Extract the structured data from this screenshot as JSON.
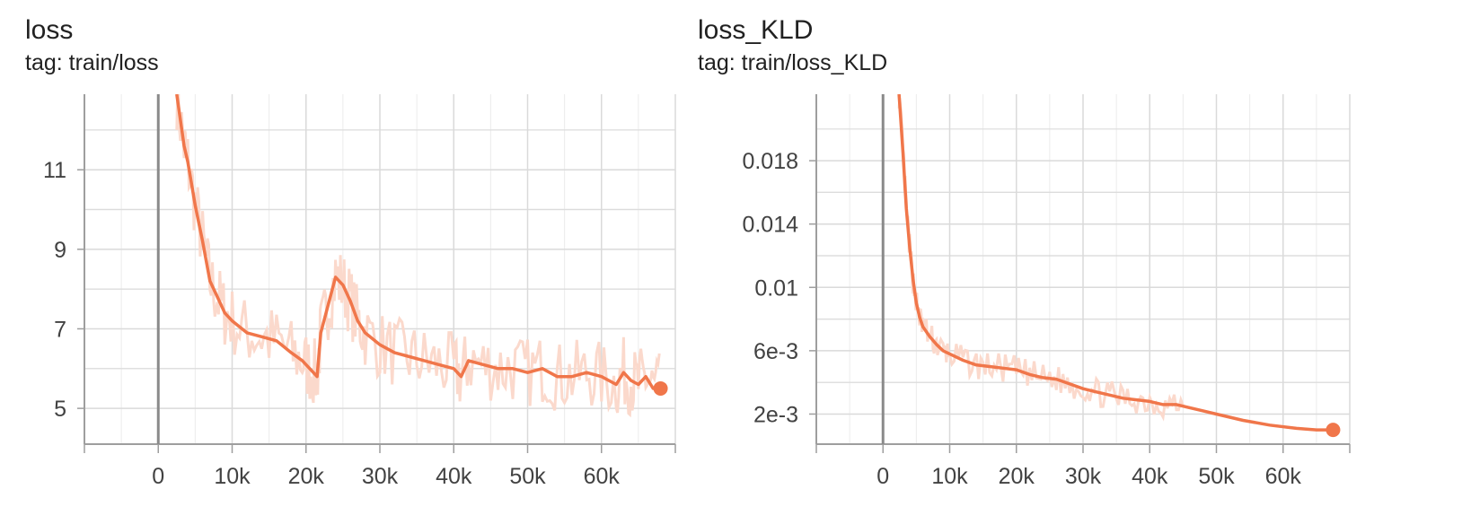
{
  "colors": {
    "line": "#f0764a",
    "raw": "#fbd9cc",
    "grid": "#dadada",
    "axis": "#9e9e9e",
    "zero": "#8a8a8a"
  },
  "chart_data": [
    {
      "type": "line",
      "title": "loss",
      "subtitle": "tag: train/loss",
      "xlabel": "",
      "ylabel": "",
      "xlim": [
        -10000,
        70000
      ],
      "ylim": [
        4.1,
        12.9
      ],
      "x_ticks": [
        0,
        10000,
        20000,
        30000,
        40000,
        50000,
        60000
      ],
      "x_tick_labels": [
        "0",
        "10k",
        "20k",
        "30k",
        "40k",
        "50k",
        "60k"
      ],
      "y_ticks": [
        5,
        7,
        9,
        11
      ],
      "y_tick_labels": [
        "5",
        "7",
        "9",
        "11"
      ],
      "grid": true,
      "series": [
        {
          "x": [
            2500,
            3500,
            4000,
            5000,
            6000,
            7000,
            8000,
            9000,
            10000,
            12000,
            14000,
            16000,
            18000,
            19500,
            20500,
            21500,
            22000,
            23000,
            24000,
            25000,
            26000,
            27000,
            28000,
            30000,
            32000,
            34000,
            36000,
            38000,
            40000,
            41000,
            42000,
            44000,
            46000,
            48000,
            50000,
            52000,
            54000,
            56000,
            58000,
            60000,
            62000,
            63000,
            64000,
            65000,
            66000,
            67000,
            68000
          ],
          "y": [
            12.9,
            11.6,
            11.2,
            10.1,
            9.2,
            8.2,
            7.8,
            7.4,
            7.2,
            6.9,
            6.8,
            6.7,
            6.4,
            6.2,
            6.0,
            5.8,
            6.9,
            7.6,
            8.3,
            8.1,
            7.7,
            7.2,
            6.9,
            6.6,
            6.4,
            6.3,
            6.2,
            6.1,
            6.0,
            5.8,
            6.2,
            6.1,
            6.0,
            6.0,
            5.9,
            6.0,
            5.8,
            5.8,
            5.9,
            5.8,
            5.6,
            5.9,
            5.7,
            5.6,
            5.8,
            5.5,
            5.5
          ]
        }
      ]
    },
    {
      "type": "line",
      "title": "loss_KLD",
      "subtitle": "tag: train/loss_KLD",
      "xlabel": "",
      "ylabel": "",
      "xlim": [
        -10000,
        70000
      ],
      "ylim": [
        0.0001,
        0.0222
      ],
      "x_ticks": [
        0,
        10000,
        20000,
        30000,
        40000,
        50000,
        60000
      ],
      "x_tick_labels": [
        "0",
        "10k",
        "20k",
        "30k",
        "40k",
        "50k",
        "60k"
      ],
      "y_ticks": [
        0.002,
        0.006,
        0.01,
        0.014,
        0.018
      ],
      "y_tick_labels": [
        "2e-3",
        "6e-3",
        "0.01",
        "0.014",
        "0.018"
      ],
      "grid": true,
      "series": [
        {
          "x": [
            2400,
            3000,
            3500,
            4000,
            4500,
            5000,
            5500,
            6000,
            7000,
            8000,
            9000,
            10000,
            12000,
            14000,
            16000,
            18000,
            20000,
            22000,
            24000,
            26000,
            28000,
            30000,
            32000,
            34000,
            36000,
            38000,
            40000,
            42000,
            44000,
            46000,
            48000,
            50000,
            54000,
            58000,
            62000,
            65000,
            67500
          ],
          "y": [
            0.0222,
            0.0185,
            0.015,
            0.0125,
            0.0105,
            0.009,
            0.0081,
            0.0075,
            0.0069,
            0.0064,
            0.006,
            0.0058,
            0.0054,
            0.0051,
            0.005,
            0.0049,
            0.0048,
            0.0045,
            0.0043,
            0.0042,
            0.0039,
            0.0036,
            0.0034,
            0.0032,
            0.003,
            0.0029,
            0.0028,
            0.0026,
            0.0026,
            0.0024,
            0.0022,
            0.002,
            0.0016,
            0.0013,
            0.0011,
            0.001,
            0.001
          ]
        }
      ]
    }
  ]
}
